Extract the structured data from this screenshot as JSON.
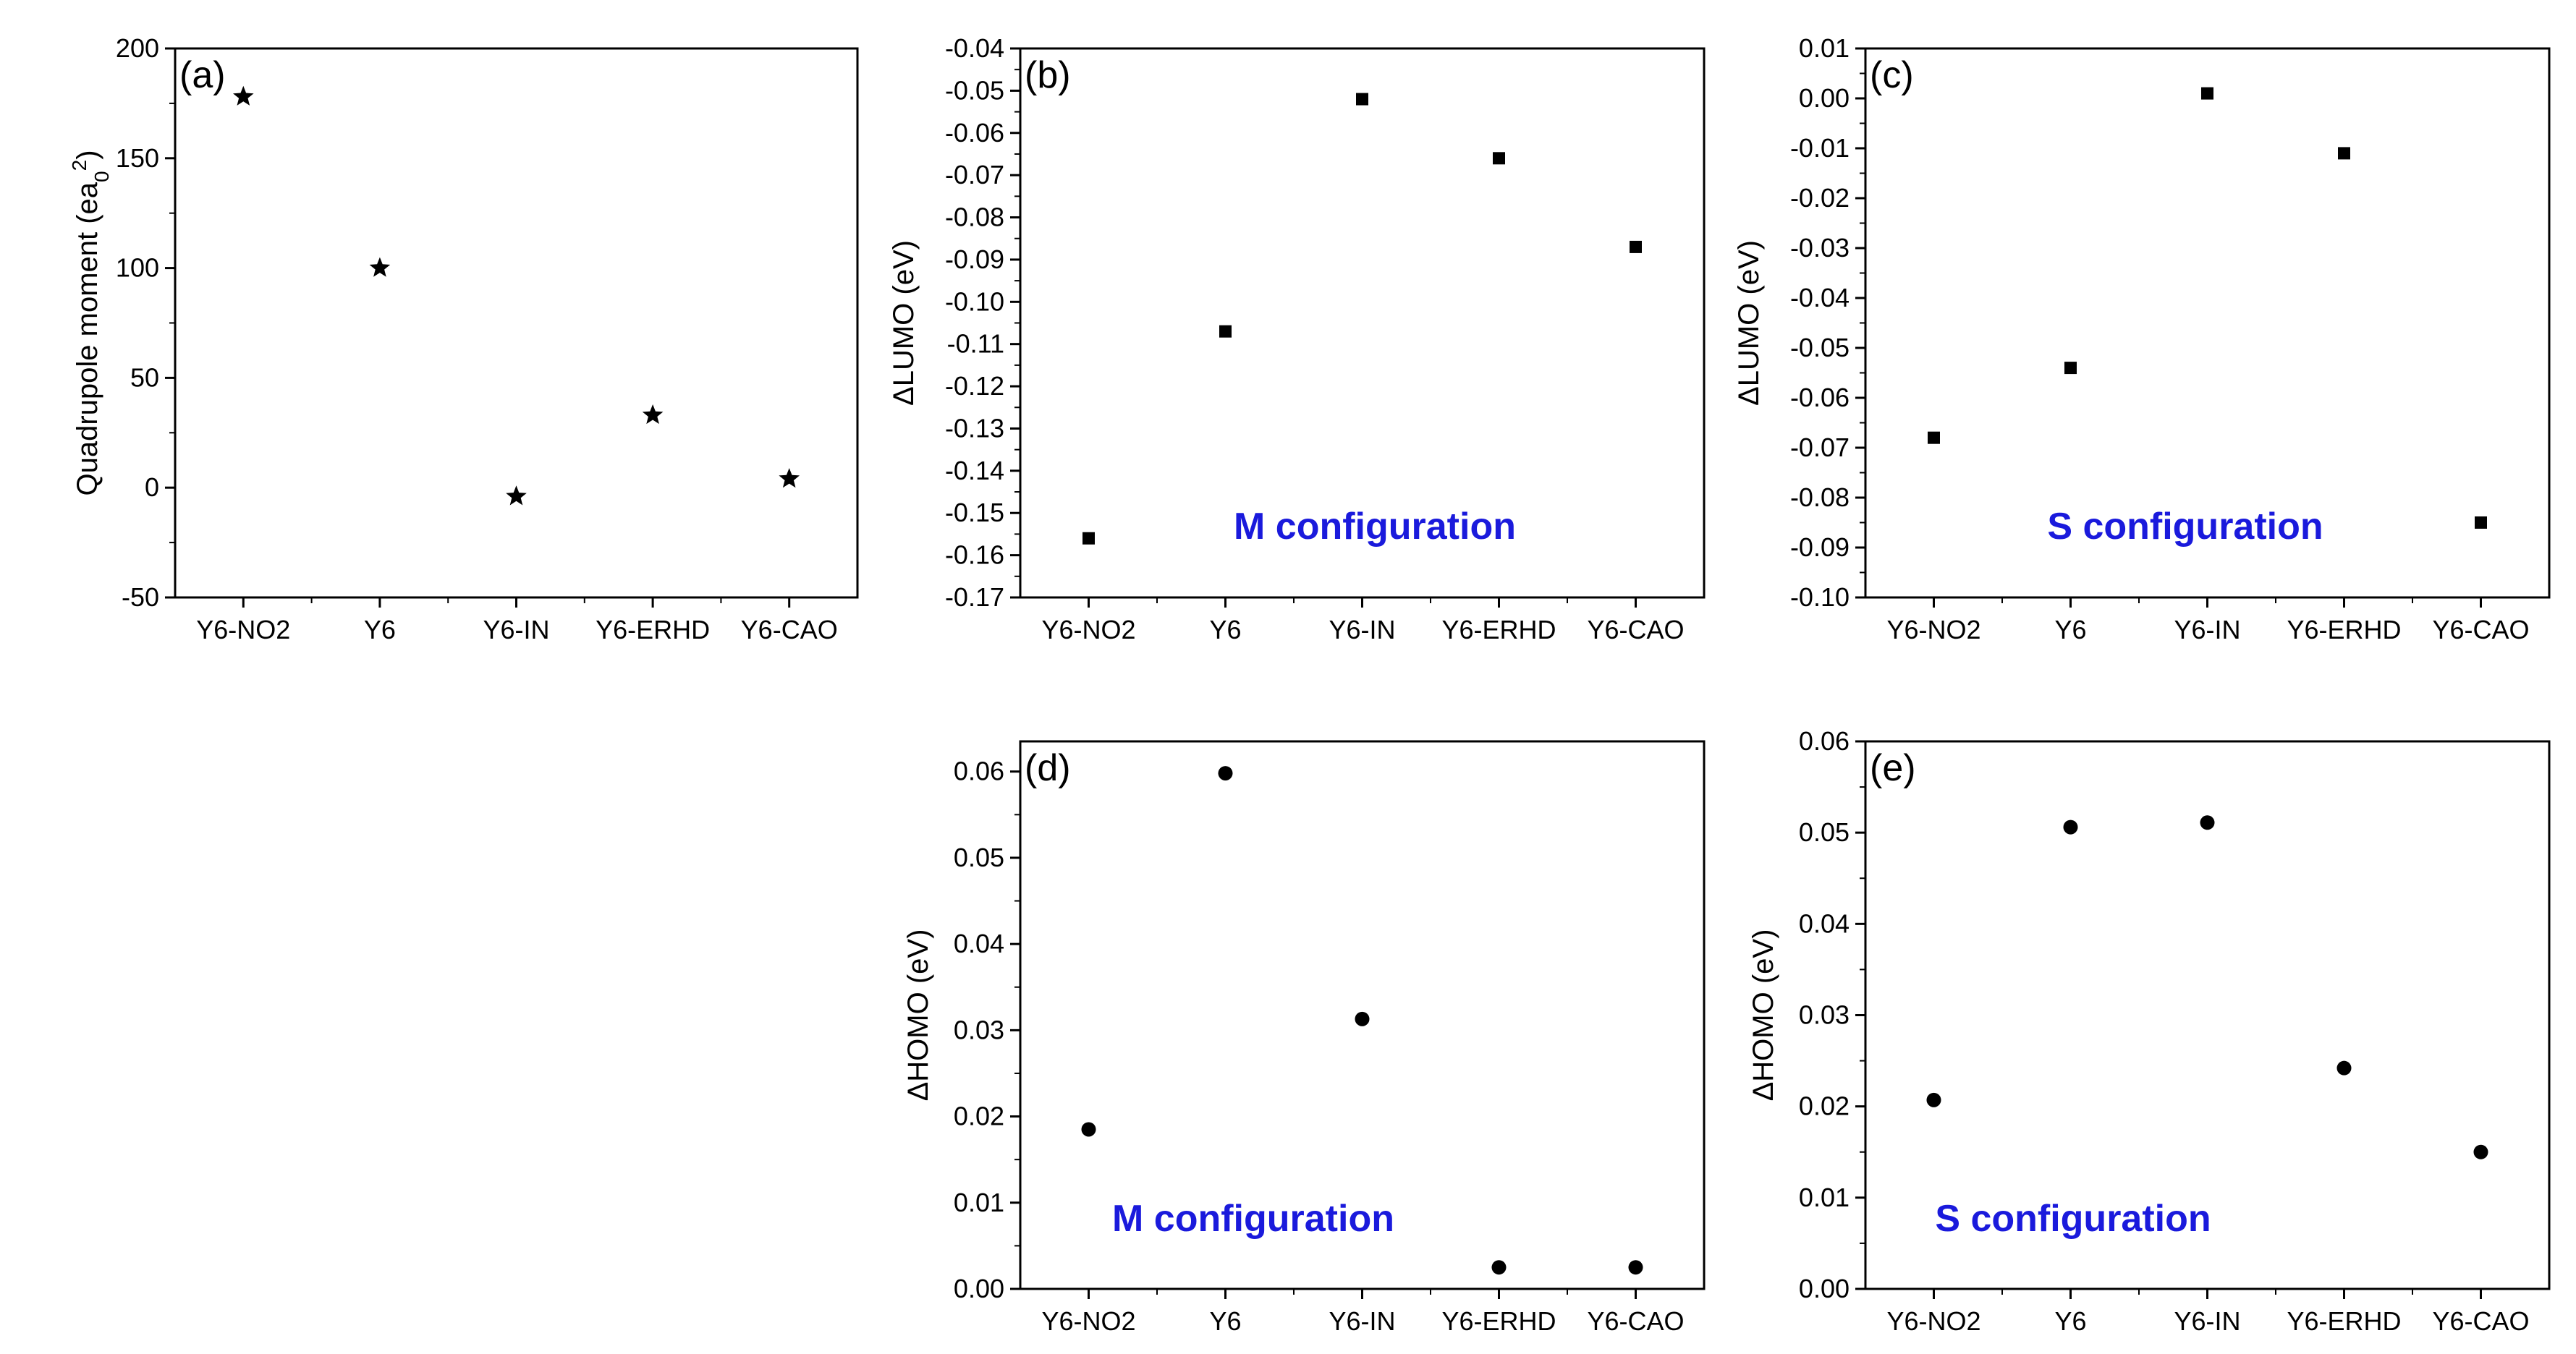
{
  "figure": {
    "background": "#ffffff",
    "marker_color": "#000000",
    "annotation_color": "#1a1adc"
  },
  "chart_data": [
    {
      "id": "a",
      "type": "scatter",
      "marker": "star",
      "panel_label": "(a)",
      "ylabel": "Quadrupole moment (ea<sub>0</sub><sup>2</sup>)",
      "ylabel_main": "Quadrupole moment (ea",
      "ylabel_sub": "0",
      "ylabel_sup": "2",
      "ylabel_close": ")",
      "categories": [
        "Y6-NO2",
        "Y6",
        "Y6-IN",
        "Y6-ERHD",
        "Y6-CAO"
      ],
      "values": [
        178,
        100,
        -4,
        33,
        4
      ],
      "ylim": [
        -50,
        200
      ],
      "yticks": [
        -50,
        0,
        50,
        100,
        150,
        200
      ],
      "ytick_labels": [
        "-50",
        "0",
        "50",
        "100",
        "150",
        "200"
      ],
      "annotation": ""
    },
    {
      "id": "b",
      "type": "scatter",
      "marker": "square",
      "panel_label": "(b)",
      "ylabel": "ΔLUMO (eV)",
      "categories": [
        "Y6-NO2",
        "Y6",
        "Y6-IN",
        "Y6-ERHD",
        "Y6-CAO"
      ],
      "values": [
        -0.156,
        -0.107,
        -0.052,
        -0.066,
        -0.087
      ],
      "ylim": [
        -0.17,
        -0.04
      ],
      "yticks": [
        -0.17,
        -0.16,
        -0.15,
        -0.14,
        -0.13,
        -0.12,
        -0.11,
        -0.1,
        -0.09,
        -0.08,
        -0.07,
        -0.06,
        -0.05,
        -0.04
      ],
      "ytick_labels": [
        "-0.17",
        "-0.16",
        "-0.15",
        "-0.14",
        "-0.13",
        "-0.12",
        "-0.11",
        "-0.10",
        "-0.09",
        "-0.08",
        "-0.07",
        "-0.06",
        "-0.05",
        "-0.04"
      ],
      "annotation": "M configuration"
    },
    {
      "id": "c",
      "type": "scatter",
      "marker": "square",
      "panel_label": "(c)",
      "ylabel": "ΔLUMO (eV)",
      "categories": [
        "Y6-NO2",
        "Y6",
        "Y6-IN",
        "Y6-ERHD",
        "Y6-CAO"
      ],
      "values": [
        -0.068,
        -0.054,
        0.001,
        -0.011,
        -0.085
      ],
      "ylim": [
        -0.1,
        0.01
      ],
      "yticks": [
        -0.1,
        -0.09,
        -0.08,
        -0.07,
        -0.06,
        -0.05,
        -0.04,
        -0.03,
        -0.02,
        -0.01,
        0.0,
        0.01
      ],
      "ytick_labels": [
        "-0.10",
        "-0.09",
        "-0.08",
        "-0.07",
        "-0.06",
        "-0.05",
        "-0.04",
        "-0.03",
        "-0.02",
        "-0.01",
        "0.00",
        "0.01"
      ],
      "annotation": "S configuration"
    },
    {
      "id": "d",
      "type": "scatter",
      "marker": "circle",
      "panel_label": "(d)",
      "ylabel": "ΔHOMO (eV)",
      "categories": [
        "Y6-NO2",
        "Y6",
        "Y6-IN",
        "Y6-ERHD",
        "Y6-CAO"
      ],
      "values": [
        0.0185,
        0.0598,
        0.0313,
        0.0025,
        0.0025
      ],
      "ylim": [
        0.0,
        0.0635
      ],
      "yticks": [
        0.0,
        0.01,
        0.02,
        0.03,
        0.04,
        0.05,
        0.06
      ],
      "ytick_labels": [
        "0.00",
        "0.01",
        "0.02",
        "0.03",
        "0.04",
        "0.05",
        "0.06"
      ],
      "annotation": "M configuration"
    },
    {
      "id": "e",
      "type": "scatter",
      "marker": "circle",
      "panel_label": "(e)",
      "ylabel": "ΔHOMO (eV)",
      "categories": [
        "Y6-NO2",
        "Y6",
        "Y6-IN",
        "Y6-ERHD",
        "Y6-CAO"
      ],
      "values": [
        0.0207,
        0.0506,
        0.0511,
        0.0242,
        0.015
      ],
      "ylim": [
        0.0,
        0.06
      ],
      "yticks": [
        0.0,
        0.01,
        0.02,
        0.03,
        0.04,
        0.05,
        0.06
      ],
      "ytick_labels": [
        "0.00",
        "0.01",
        "0.02",
        "0.03",
        "0.04",
        "0.05",
        "0.06"
      ],
      "annotation": "S configuration"
    }
  ]
}
